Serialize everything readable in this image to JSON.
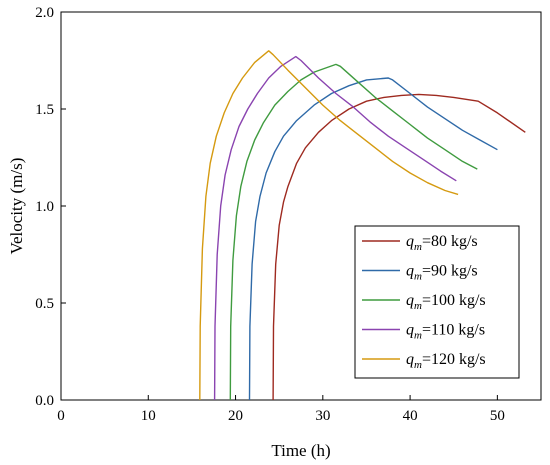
{
  "chart_data": {
    "type": "line",
    "xlabel": "Time (h)",
    "ylabel": "Velocity (m/s)",
    "xlim": [
      0,
      55
    ],
    "ylim": [
      0,
      2.0
    ],
    "x_ticks": [
      0,
      10,
      20,
      30,
      40,
      50
    ],
    "y_ticks": [
      "0.0",
      "0.5",
      "1.0",
      "1.5",
      "2.0"
    ],
    "grid": false,
    "legend_position": "bottom-right",
    "series": [
      {
        "name": "q_m=80 kg/s",
        "label_symbol": "q",
        "label_subscript": "m",
        "label_rest": "=80 kg/s",
        "color": "#9e2a20",
        "points": [
          [
            24.3,
            0.0
          ],
          [
            24.35,
            0.38
          ],
          [
            24.6,
            0.7
          ],
          [
            25.0,
            0.9
          ],
          [
            25.5,
            1.02
          ],
          [
            26.0,
            1.1
          ],
          [
            27.0,
            1.22
          ],
          [
            28.0,
            1.3
          ],
          [
            29.5,
            1.38
          ],
          [
            31.0,
            1.44
          ],
          [
            33.0,
            1.5
          ],
          [
            35.0,
            1.54
          ],
          [
            37.0,
            1.56
          ],
          [
            39.0,
            1.57
          ],
          [
            41.0,
            1.575
          ],
          [
            43.0,
            1.57
          ],
          [
            45.0,
            1.56
          ],
          [
            47.8,
            1.54
          ],
          [
            50.0,
            1.48
          ],
          [
            53.2,
            1.38
          ]
        ]
      },
      {
        "name": "q_m=90 kg/s",
        "label_symbol": "q",
        "label_subscript": "m",
        "label_rest": "=90 kg/s",
        "color": "#2f6aa8",
        "points": [
          [
            21.6,
            0.0
          ],
          [
            21.65,
            0.38
          ],
          [
            21.9,
            0.7
          ],
          [
            22.3,
            0.92
          ],
          [
            22.8,
            1.05
          ],
          [
            23.5,
            1.17
          ],
          [
            24.5,
            1.28
          ],
          [
            25.5,
            1.36
          ],
          [
            27.0,
            1.44
          ],
          [
            29.0,
            1.52
          ],
          [
            31.0,
            1.58
          ],
          [
            33.0,
            1.62
          ],
          [
            35.0,
            1.65
          ],
          [
            37.5,
            1.66
          ],
          [
            38.0,
            1.65
          ],
          [
            40.0,
            1.58
          ],
          [
            42.0,
            1.51
          ],
          [
            44.0,
            1.45
          ],
          [
            46.0,
            1.39
          ],
          [
            48.0,
            1.34
          ],
          [
            50.0,
            1.29
          ]
        ]
      },
      {
        "name": "q_m=100 kg/s",
        "label_symbol": "q",
        "label_subscript": "m",
        "label_rest": "=100 kg/s",
        "color": "#3f9b3f",
        "points": [
          [
            19.4,
            0.0
          ],
          [
            19.45,
            0.38
          ],
          [
            19.7,
            0.72
          ],
          [
            20.1,
            0.95
          ],
          [
            20.6,
            1.1
          ],
          [
            21.3,
            1.23
          ],
          [
            22.2,
            1.34
          ],
          [
            23.2,
            1.43
          ],
          [
            24.5,
            1.52
          ],
          [
            26.0,
            1.59
          ],
          [
            27.5,
            1.65
          ],
          [
            29.0,
            1.69
          ],
          [
            31.5,
            1.73
          ],
          [
            32.0,
            1.72
          ],
          [
            34.0,
            1.64
          ],
          [
            36.0,
            1.56
          ],
          [
            38.0,
            1.49
          ],
          [
            40.0,
            1.42
          ],
          [
            42.0,
            1.35
          ],
          [
            44.0,
            1.29
          ],
          [
            46.0,
            1.23
          ],
          [
            47.7,
            1.19
          ]
        ]
      },
      {
        "name": "q_m=110 kg/s",
        "label_symbol": "q",
        "label_subscript": "m",
        "label_rest": "=110 kg/s",
        "color": "#8a44b0",
        "points": [
          [
            17.6,
            0.0
          ],
          [
            17.65,
            0.38
          ],
          [
            17.9,
            0.75
          ],
          [
            18.3,
            1.0
          ],
          [
            18.8,
            1.16
          ],
          [
            19.5,
            1.29
          ],
          [
            20.4,
            1.41
          ],
          [
            21.4,
            1.5
          ],
          [
            22.5,
            1.58
          ],
          [
            23.8,
            1.66
          ],
          [
            25.2,
            1.72
          ],
          [
            26.9,
            1.77
          ],
          [
            27.5,
            1.75
          ],
          [
            29.5,
            1.66
          ],
          [
            31.5,
            1.58
          ],
          [
            33.5,
            1.51
          ],
          [
            35.5,
            1.43
          ],
          [
            37.5,
            1.36
          ],
          [
            39.5,
            1.3
          ],
          [
            41.5,
            1.24
          ],
          [
            43.5,
            1.18
          ],
          [
            45.3,
            1.13
          ]
        ]
      },
      {
        "name": "q_m=120 kg/s",
        "label_symbol": "q",
        "label_subscript": "m",
        "label_rest": "=120 kg/s",
        "color": "#d59a10",
        "points": [
          [
            15.9,
            0.0
          ],
          [
            15.95,
            0.38
          ],
          [
            16.2,
            0.78
          ],
          [
            16.6,
            1.05
          ],
          [
            17.1,
            1.22
          ],
          [
            17.8,
            1.36
          ],
          [
            18.7,
            1.48
          ],
          [
            19.7,
            1.58
          ],
          [
            20.8,
            1.66
          ],
          [
            22.2,
            1.74
          ],
          [
            23.8,
            1.8
          ],
          [
            24.3,
            1.78
          ],
          [
            26.0,
            1.7
          ],
          [
            28.0,
            1.61
          ],
          [
            30.0,
            1.52
          ],
          [
            32.0,
            1.44
          ],
          [
            34.0,
            1.37
          ],
          [
            36.0,
            1.3
          ],
          [
            38.0,
            1.23
          ],
          [
            40.0,
            1.17
          ],
          [
            42.0,
            1.12
          ],
          [
            44.0,
            1.08
          ],
          [
            45.5,
            1.06
          ]
        ]
      }
    ]
  }
}
